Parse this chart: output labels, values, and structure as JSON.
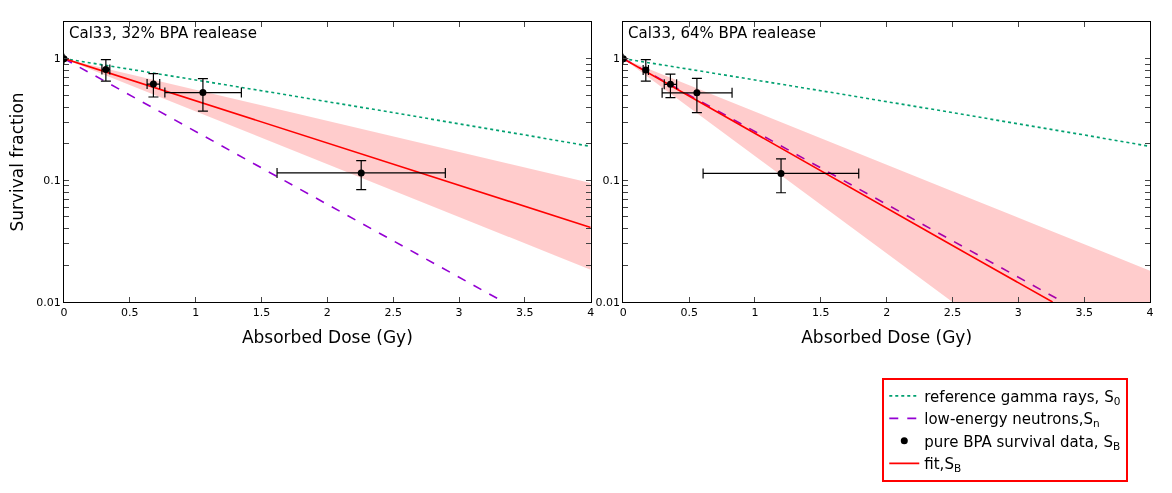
{
  "chart_data": [
    {
      "type": "line",
      "title": "Cal33, 32% BPA realease",
      "xlabel": "Absorbed Dose (Gy)",
      "ylabel": "Survival fraction",
      "log": "y",
      "grid": false,
      "legend": "bottom right",
      "xlim": [
        0,
        4
      ],
      "xticks": [
        0,
        0.5,
        1,
        1.5,
        2,
        2.5,
        3,
        3.5,
        4
      ],
      "ylim": [
        0.01,
        2
      ],
      "yticks": [
        {
          "value": 0.01,
          "label": "0.01"
        },
        {
          "value": 0.02,
          "label": null
        },
        {
          "value": 0.03,
          "label": null
        },
        {
          "value": 0.04,
          "label": null
        },
        {
          "value": 0.05,
          "label": null
        },
        {
          "value": 0.06,
          "label": null
        },
        {
          "value": 0.07,
          "label": null
        },
        {
          "value": 0.08,
          "label": null
        },
        {
          "value": 0.09,
          "label": null
        },
        {
          "value": 0.1,
          "label": "0.1"
        },
        {
          "value": 0.2,
          "label": null
        },
        {
          "value": 0.3,
          "label": null
        },
        {
          "value": 0.4,
          "label": null
        },
        {
          "value": 0.5,
          "label": null
        },
        {
          "value": 0.6,
          "label": null
        },
        {
          "value": 0.7,
          "label": null
        },
        {
          "value": 0.8,
          "label": null
        },
        {
          "value": 0.9,
          "label": null
        },
        {
          "value": 1,
          "label": "1"
        },
        {
          "value": 2,
          "label": null
        }
      ],
      "series": [
        {
          "name": "reference gamma rays, S$_{0}$",
          "line_style": "dotted",
          "marker": "none",
          "color": "#00a070",
          "x": [
            0,
            0.5,
            1,
            1.5,
            2,
            2.5,
            3,
            3.5,
            4
          ],
          "values": [
            1,
            0.818,
            0.668,
            0.545,
            0.443,
            0.36,
            0.291,
            0.236,
            0.19
          ]
        },
        {
          "name": "low-energy neutrons,S$_{n}$",
          "line_style": "dashed",
          "marker": "none",
          "color": "#9400d3",
          "x": [
            0,
            3.34
          ],
          "values": [
            1,
            0.01
          ]
        },
        {
          "name": "pure BPA survival data, S$_{B}$",
          "type": "scatter",
          "marker": "circle",
          "color": "#000000",
          "x": [
            0,
            0.318,
            0.679,
            1.055,
            2.257
          ],
          "values": [
            1,
            0.816,
            0.618,
            0.526,
            0.115
          ],
          "errors": [
            null,
            [
              0.653,
              0.98
            ],
            [
              0.484,
              0.752
            ],
            [
              0.37,
              0.684
            ],
            [
              0.084,
              0.145
            ]
          ],
          "xerrors": [
            null,
            0.03,
            0.048,
            [
              0.766,
              1.347
            ],
            [
              1.618,
              2.896
            ]
          ]
        },
        {
          "name": "fit,S$_{B}$",
          "line_style": "solid",
          "marker": "none",
          "color": "#ff0000",
          "x": [
            0,
            4
          ],
          "values": [
            1,
            0.041
          ],
          "lower": [
            1,
            0.0184
          ],
          "upper": [
            1,
            0.095
          ]
        }
      ]
    },
    {
      "type": "line",
      "title": "Cal33, 64% BPA realease",
      "xlabel": "Absorbed Dose (Gy)",
      "log": "y",
      "grid": false,
      "xlim": [
        0,
        4
      ],
      "xticks": [
        0,
        0.5,
        1,
        1.5,
        2,
        2.5,
        3,
        3.5,
        4
      ],
      "ylim": [
        0.01,
        2
      ],
      "yticks": [
        {
          "value": 0.01,
          "label": "0.01"
        },
        {
          "value": 0.02,
          "label": null
        },
        {
          "value": 0.03,
          "label": null
        },
        {
          "value": 0.04,
          "label": null
        },
        {
          "value": 0.05,
          "label": null
        },
        {
          "value": 0.06,
          "label": null
        },
        {
          "value": 0.07,
          "label": null
        },
        {
          "value": 0.08,
          "label": null
        },
        {
          "value": 0.09,
          "label": null
        },
        {
          "value": 0.1,
          "label": "0.1"
        },
        {
          "value": 0.2,
          "label": null
        },
        {
          "value": 0.3,
          "label": null
        },
        {
          "value": 0.4,
          "label": null
        },
        {
          "value": 0.5,
          "label": null
        },
        {
          "value": 0.6,
          "label": null
        },
        {
          "value": 0.7,
          "label": null
        },
        {
          "value": 0.8,
          "label": null
        },
        {
          "value": 0.9,
          "label": null
        },
        {
          "value": 1,
          "label": "1"
        },
        {
          "value": 2,
          "label": null
        }
      ],
      "series": [
        {
          "line_style": "dotted",
          "marker": "none",
          "color": "#00a070",
          "x": [
            0,
            0.5,
            1,
            1.5,
            2,
            2.5,
            3,
            3.5,
            4
          ],
          "values": [
            1,
            0.818,
            0.668,
            0.545,
            0.443,
            0.36,
            0.291,
            0.236,
            0.19
          ]
        },
        {
          "line_style": "dashed",
          "marker": "none",
          "color": "#9400d3",
          "x": [
            0,
            3.34
          ],
          "values": [
            1,
            0.01
          ]
        },
        {
          "type": "scatter",
          "marker": "circle",
          "color": "#000000",
          "x": [
            0,
            0.171,
            0.358,
            0.559,
            1.198
          ],
          "values": [
            1,
            0.808,
            0.615,
            0.524,
            0.114
          ],
          "errors": [
            null,
            [
              0.653,
              0.98
            ],
            [
              0.478,
              0.747
            ],
            [
              0.36,
              0.687
            ],
            [
              0.079,
              0.15
            ]
          ],
          "xerrors": [
            null,
            0.02,
            0.047,
            [
              0.295,
              0.826
            ],
            [
              0.606,
              1.788
            ]
          ]
        },
        {
          "line_style": "solid",
          "marker": "none",
          "color": "#ff0000",
          "x": [
            0,
            2.5,
            3.26,
            4
          ],
          "values": [
            1,
            0.0291,
            0.01,
            null
          ],
          "lower": [
            1,
            0.01,
            0.01,
            0.01
          ],
          "upper": [
            1,
            0.0815,
            0.038,
            0.0181
          ]
        }
      ]
    }
  ]
}
